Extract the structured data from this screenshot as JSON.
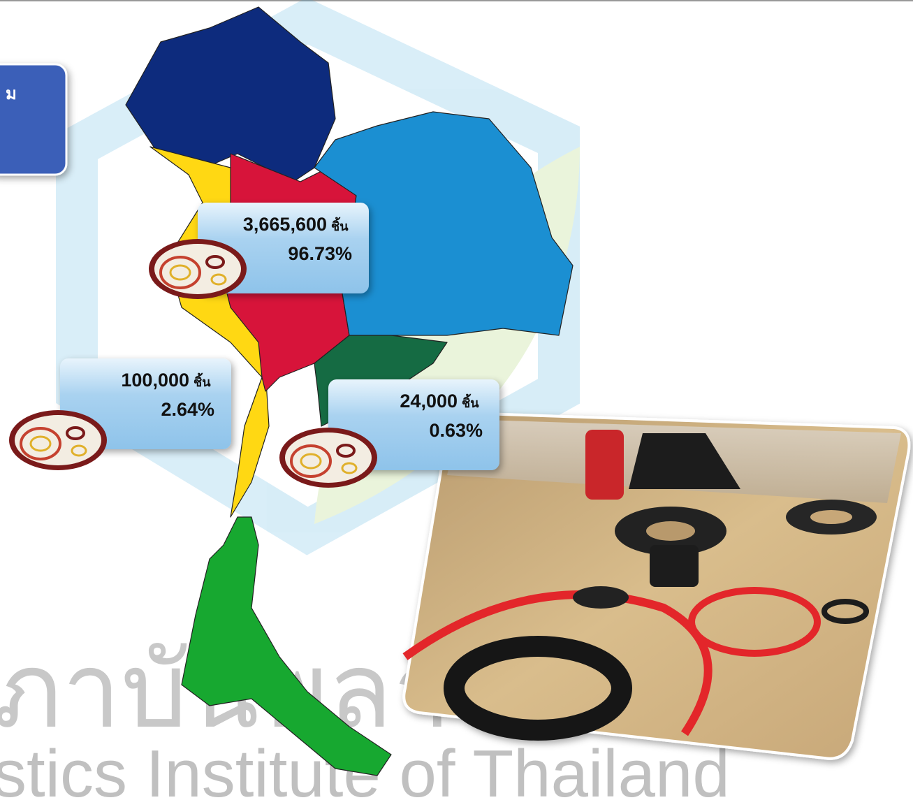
{
  "header": {
    "title": "ม"
  },
  "watermark": "stics Institute of Thailand",
  "callouts": [
    {
      "quantity": "3,665,600",
      "unit": "ชิ้น",
      "share": "96.73%"
    },
    {
      "quantity": "100,000",
      "unit": "ชิ้น",
      "share": "2.64%"
    },
    {
      "quantity": "24,000",
      "unit": "ชิ้น",
      "share": "0.63%"
    }
  ]
}
